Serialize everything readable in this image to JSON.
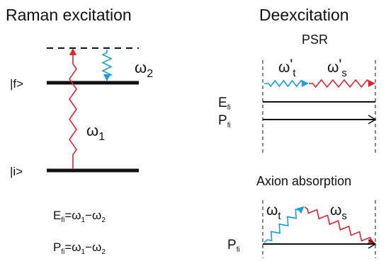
{
  "left_panel": {
    "title": "Raman excitation",
    "level_final": "|f>",
    "level_initial": "|i>",
    "omega1": {
      "symbol": "ω",
      "sub": "1"
    },
    "omega2": {
      "symbol": "ω",
      "sub": "2"
    },
    "energy_eq": {
      "lhs": "E",
      "lhs_sub": "fi",
      "eq": "=ω",
      "s1": "1",
      "mid": "−ω",
      "s2": "2"
    },
    "momentum_eq": {
      "lhs": "P",
      "lhs_sub": "fi",
      "eq": "=ω",
      "s1": "1",
      "mid": "−ω",
      "s2": "2"
    }
  },
  "right_panel": {
    "title": "Deexcitation",
    "psr": {
      "label": "PSR",
      "omega_t": {
        "symbol": "ω",
        "prime": "'",
        "sub": "t"
      },
      "omega_s": {
        "symbol": "ω",
        "prime": "'",
        "sub": "s"
      },
      "energy": {
        "symbol": "E",
        "sub": "fi"
      },
      "momentum": {
        "symbol": "P",
        "sub": "fi"
      }
    },
    "axion": {
      "label": "Axion absorption",
      "omega_t": {
        "symbol": "ω",
        "sub": "t"
      },
      "omega_s": {
        "symbol": "ω",
        "sub": "s"
      },
      "momentum": {
        "symbol": "P",
        "sub": "fi"
      }
    }
  },
  "colors": {
    "red_photon": "#e8202a",
    "blue_photon": "#1aa0e0",
    "line": "#111111"
  }
}
